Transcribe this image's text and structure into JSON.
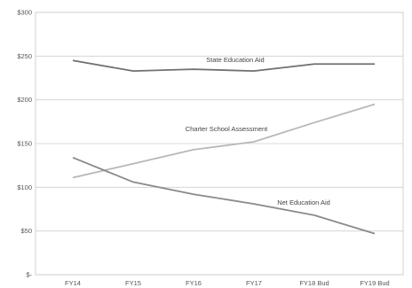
{
  "chart_data": {
    "type": "line",
    "categories": [
      "FY14",
      "FY15",
      "FY16",
      "FY17",
      "FY18 Bud",
      "FY19 Bud"
    ],
    "y_ticks": [
      "$-",
      "$50",
      "$100",
      "$150",
      "$200",
      "$250",
      "$300"
    ],
    "ylim": [
      0,
      300
    ],
    "grid": true,
    "legend": "none",
    "series": [
      {
        "name": "State Education Aid",
        "values": [
          245,
          233,
          235,
          233,
          241,
          241
        ],
        "color": "#707070"
      },
      {
        "name": "Charter School Assessment",
        "values": [
          111,
          127,
          143,
          152,
          174,
          195
        ],
        "color": "#b8b8b8"
      },
      {
        "name": "Net Education Aid",
        "values": [
          134,
          106,
          92,
          81,
          68,
          47
        ],
        "color": "#8a8a8a"
      }
    ]
  }
}
